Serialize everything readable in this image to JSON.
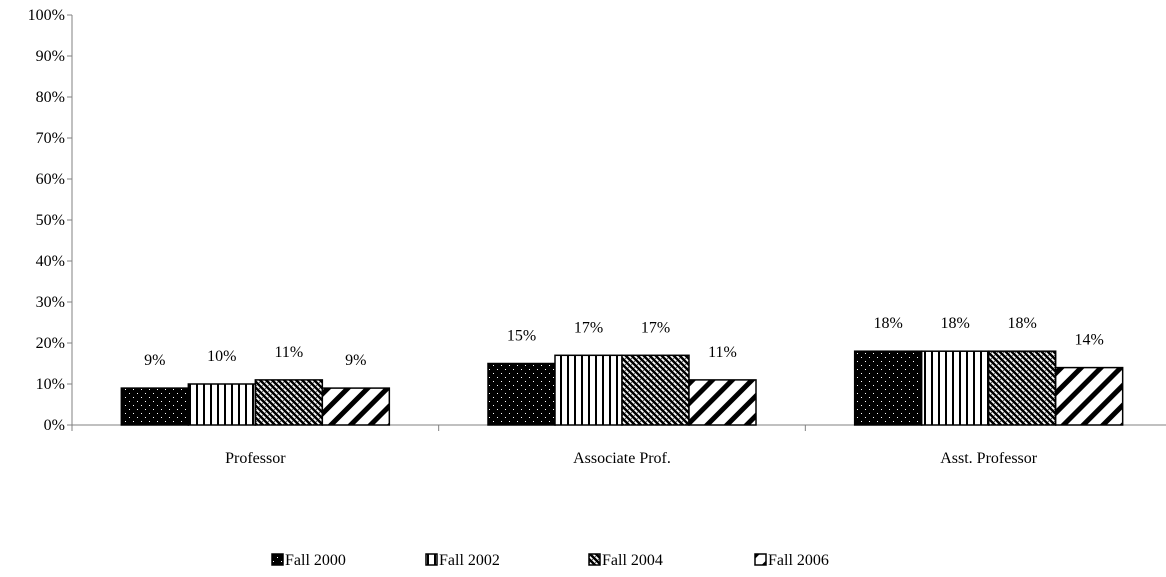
{
  "chart_data": {
    "type": "bar",
    "categories": [
      "Professor",
      "Associate Prof.",
      "Asst. Professor"
    ],
    "series": [
      {
        "name": "Fall 2000",
        "values": [
          9,
          15,
          18
        ],
        "labels": [
          "9%",
          "15%",
          "18%"
        ],
        "pattern": "dots"
      },
      {
        "name": "Fall 2002",
        "values": [
          10,
          17,
          18
        ],
        "labels": [
          "10%",
          "17%",
          "18%"
        ],
        "pattern": "vertical-lines"
      },
      {
        "name": "Fall 2004",
        "values": [
          11,
          17,
          18
        ],
        "labels": [
          "11%",
          "17%",
          "18%"
        ],
        "pattern": "diagonal-crosshatch"
      },
      {
        "name": "Fall 2006",
        "values": [
          9,
          11,
          14
        ],
        "labels": [
          "9%",
          "11%",
          "14%"
        ],
        "pattern": "wide-diagonal-stripes"
      }
    ],
    "ylim": [
      0,
      100
    ],
    "yticks": [
      "0%",
      "10%",
      "20%",
      "30%",
      "40%",
      "50%",
      "60%",
      "70%",
      "80%",
      "90%",
      "100%"
    ],
    "title": "",
    "xlabel": "",
    "ylabel": "",
    "grid": false,
    "legend_position": "bottom"
  },
  "colors": {
    "bar_fill": "#000000",
    "background": "#ffffff",
    "axis": "#808080"
  }
}
